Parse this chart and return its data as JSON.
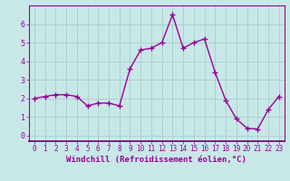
{
  "x": [
    0,
    1,
    2,
    3,
    4,
    5,
    6,
    7,
    8,
    9,
    10,
    11,
    12,
    13,
    14,
    15,
    16,
    17,
    18,
    19,
    20,
    21,
    22,
    23
  ],
  "y": [
    2.0,
    2.1,
    2.2,
    2.2,
    2.1,
    1.6,
    1.75,
    1.75,
    1.6,
    3.6,
    4.6,
    4.7,
    5.0,
    6.5,
    4.7,
    5.0,
    5.2,
    3.4,
    1.9,
    0.9,
    0.4,
    0.35,
    1.4,
    2.1
  ],
  "line_color": "#990099",
  "marker": "+",
  "markersize": 4,
  "linewidth": 1.0,
  "xlabel": "Windchill (Refroidissement éolien,°C)",
  "xlim": [
    -0.5,
    23.5
  ],
  "ylim": [
    -0.3,
    7.0
  ],
  "yticks": [
    0,
    1,
    2,
    3,
    4,
    5,
    6
  ],
  "xticks": [
    0,
    1,
    2,
    3,
    4,
    5,
    6,
    7,
    8,
    9,
    10,
    11,
    12,
    13,
    14,
    15,
    16,
    17,
    18,
    19,
    20,
    21,
    22,
    23
  ],
  "bg_color": "#c8e8e8",
  "grid_color": "#aacccc",
  "tick_label_color": "#990099",
  "xlabel_color": "#990099",
  "spine_color": "#990099",
  "tick_fontsize": 5.5,
  "xlabel_fontsize": 6.5
}
